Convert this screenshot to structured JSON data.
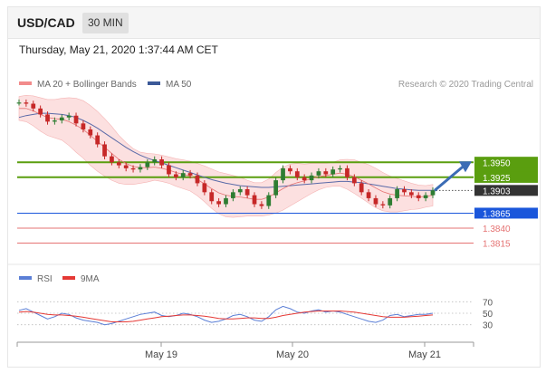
{
  "header": {
    "pair": "USD/CAD",
    "timeframe": "30 MIN"
  },
  "timestamp": "Thursday, May 21, 2020 1:37:44 AM CET",
  "legend": {
    "ma20": "MA 20 + Bollinger Bands",
    "ma50": "MA 50",
    "credit": "Research © 2020 Trading Central"
  },
  "rsi_legend": {
    "rsi": "RSI",
    "ma9": "9MA"
  },
  "colors": {
    "up": "#2e7d32",
    "down": "#c62828",
    "resistance": "#5a9e0f",
    "pivot": "#1a56db",
    "support": "#e57373",
    "ma50": "#5a6aa8",
    "ma20": "#e57373",
    "band": "#fbd5d5",
    "rsi": "#5b7fd6",
    "rsi_ma": "#e53935",
    "current_bg": "#333333"
  },
  "chart_data": {
    "type": "line",
    "x_ticks": [
      "May 19",
      "May 20",
      "May 21"
    ],
    "ylim": [
      1.379,
      1.407
    ],
    "levels": [
      {
        "label": "1.3950",
        "value": 1.395,
        "kind": "resistance"
      },
      {
        "label": "1.3925",
        "value": 1.3925,
        "kind": "resistance"
      },
      {
        "label": "1.3903",
        "value": 1.3903,
        "kind": "current"
      },
      {
        "label": "1.3865",
        "value": 1.3865,
        "kind": "pivot"
      },
      {
        "label": "1.3840",
        "value": 1.384,
        "kind": "support"
      },
      {
        "label": "1.3815",
        "value": 1.3815,
        "kind": "support"
      }
    ],
    "price": [
      1.405,
      1.4048,
      1.404,
      1.403,
      1.4018,
      1.402,
      1.4025,
      1.4028,
      1.4015,
      1.4005,
      1.3995,
      1.398,
      1.396,
      1.395,
      1.3945,
      1.394,
      1.3938,
      1.3942,
      1.395,
      1.3955,
      1.3945,
      1.393,
      1.3925,
      1.3932,
      1.3928,
      1.3915,
      1.39,
      1.3885,
      1.388,
      1.389,
      1.39,
      1.3905,
      1.3895,
      1.388,
      1.3877,
      1.3895,
      1.392,
      1.394,
      1.3935,
      1.3925,
      1.392,
      1.3928,
      1.3935,
      1.393,
      1.3938,
      1.394,
      1.3925,
      1.3915,
      1.39,
      1.389,
      1.388,
      1.3878,
      1.389,
      1.3905,
      1.39,
      1.3895,
      1.389,
      1.3895,
      1.3903
    ],
    "ma20": [
      1.404,
      1.404,
      1.4036,
      1.403,
      1.4025,
      1.4023,
      1.4022,
      1.4018,
      1.4012,
      1.4005,
      1.3995,
      1.3985,
      1.3975,
      1.3965,
      1.3955,
      1.3948,
      1.3943,
      1.3941,
      1.3941,
      1.3942,
      1.394,
      1.3937,
      1.3933,
      1.393,
      1.3927,
      1.3921,
      1.3914,
      1.3906,
      1.3899,
      1.3895,
      1.3893,
      1.3892,
      1.389,
      1.3888,
      1.3888,
      1.3892,
      1.3899,
      1.3906,
      1.3912,
      1.3916,
      1.3919,
      1.3923,
      1.3926,
      1.3928,
      1.393,
      1.3932,
      1.393,
      1.3926,
      1.392,
      1.3914,
      1.3907,
      1.3901,
      1.3897,
      1.3895,
      1.3894,
      1.3893,
      1.3892,
      1.3893,
      1.3895
    ],
    "ma50": [
      1.4025,
      1.4028,
      1.403,
      1.4032,
      1.4032,
      1.4031,
      1.403,
      1.4028,
      1.4025,
      1.402,
      1.4014,
      1.4007,
      1.3999,
      1.3991,
      1.3983,
      1.3975,
      1.3968,
      1.3962,
      1.3957,
      1.3953,
      1.3949,
      1.3945,
      1.3941,
      1.3937,
      1.3933,
      1.3929,
      1.3925,
      1.3921,
      1.3918,
      1.3915,
      1.3913,
      1.3911,
      1.391,
      1.3909,
      1.3908,
      1.3908,
      1.3909,
      1.391,
      1.3911,
      1.3912,
      1.3913,
      1.3914,
      1.3915,
      1.3916,
      1.3917,
      1.3918,
      1.3918,
      1.3917,
      1.3916,
      1.3914,
      1.3912,
      1.391,
      1.3908,
      1.3906,
      1.3905,
      1.3904,
      1.3903,
      1.3903,
      1.3903
    ],
    "band_width": [
      0.002,
      0.0022,
      0.0025,
      0.0028,
      0.003,
      0.0032,
      0.0035,
      0.004,
      0.0045,
      0.0048,
      0.005,
      0.005,
      0.0048,
      0.0045,
      0.004,
      0.0035,
      0.003,
      0.0026,
      0.0024,
      0.0022,
      0.0022,
      0.0022,
      0.0023,
      0.0024,
      0.0025,
      0.0027,
      0.003,
      0.0033,
      0.0035,
      0.0036,
      0.0035,
      0.0033,
      0.003,
      0.0028,
      0.0028,
      0.003,
      0.0034,
      0.0036,
      0.0035,
      0.0032,
      0.0028,
      0.0025,
      0.0022,
      0.002,
      0.002,
      0.0022,
      0.0025,
      0.0028,
      0.003,
      0.0032,
      0.0033,
      0.0032,
      0.003,
      0.0028,
      0.0025,
      0.0022,
      0.002,
      0.0018,
      0.0018
    ],
    "forecast": {
      "from": 1.3903,
      "to": 1.395
    },
    "rsi": {
      "ticks": [
        "70",
        "50",
        "30"
      ],
      "ylim": [
        20,
        80
      ],
      "values": [
        55,
        58,
        52,
        46,
        40,
        44,
        50,
        48,
        42,
        38,
        36,
        34,
        30,
        32,
        36,
        40,
        44,
        48,
        50,
        52,
        46,
        44,
        46,
        50,
        48,
        44,
        38,
        34,
        36,
        40,
        46,
        48,
        44,
        38,
        36,
        44,
        56,
        62,
        58,
        52,
        50,
        54,
        56,
        52,
        54,
        52,
        48,
        44,
        40,
        36,
        34,
        38,
        46,
        48,
        44,
        46,
        48,
        48,
        50
      ],
      "ma": [
        52,
        53,
        52,
        50,
        48,
        47,
        47,
        46,
        45,
        43,
        41,
        39,
        37,
        35,
        35,
        35,
        36,
        38,
        40,
        42,
        44,
        45,
        46,
        47,
        47,
        46,
        45,
        43,
        41,
        40,
        40,
        41,
        42,
        42,
        41,
        41,
        43,
        46,
        48,
        50,
        52,
        53,
        54,
        54,
        54,
        54,
        53,
        52,
        50,
        48,
        46,
        44,
        43,
        43,
        43,
        44,
        45,
        46,
        47
      ]
    }
  }
}
